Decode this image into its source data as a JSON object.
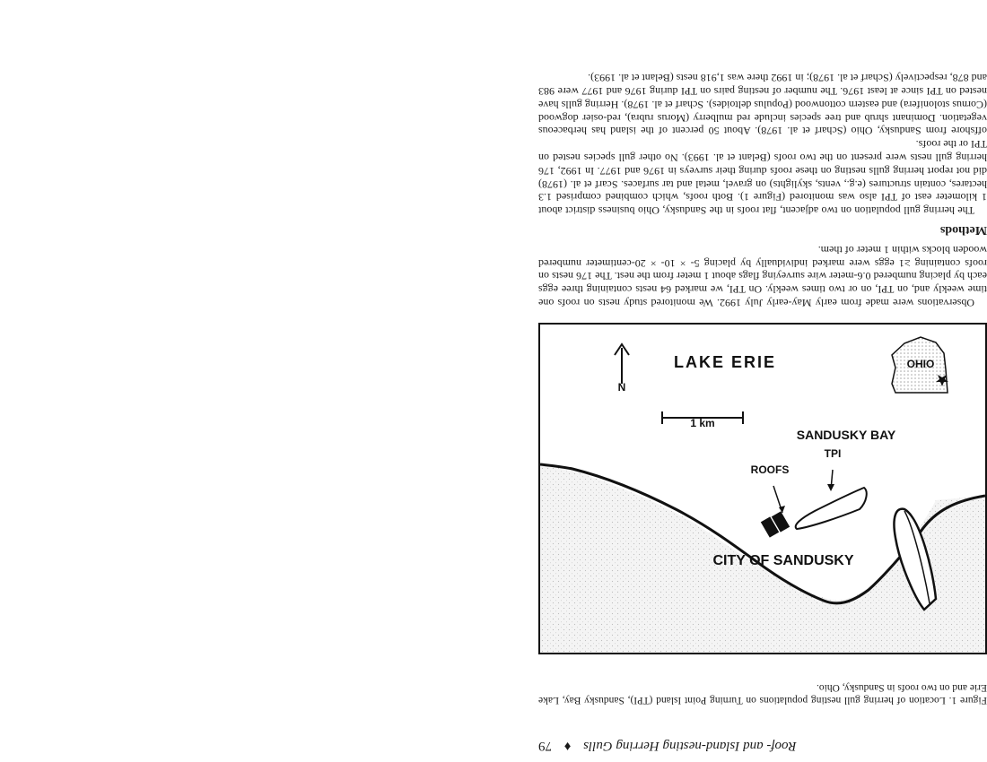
{
  "running_head": {
    "title": "Roof- and Island-nesting Herring Gulls",
    "separator": "♦",
    "page_number": "79"
  },
  "figure": {
    "caption": "Figure 1. Location of herring gull nesting populations on Turning Point Island (TPI), Sandusky Bay, Lake Erie and on two roofs in Sandusky, Ohio.",
    "labels": {
      "city": "CITY OF SANDUSKY",
      "roofs": "ROOFS",
      "tpi": "TPI",
      "bay": "SANDUSKY BAY",
      "scale": "1 km",
      "north": "N",
      "lake": "LAKE ERIE",
      "state": "OHIO"
    }
  },
  "body": {
    "methods_heading": "Methods",
    "methods_paragraph": "Observations were made from early May-early July 1992. We monitored study nests on roofs one time weekly and, on TPI, on or two times weekly. On TPI, we marked 64 nests containing three eggs each by placing numbered 0.6-meter wire surveying flags about 1 meter from the nest. The 176 nests on roofs containing ≥1 eggs were marked individually by placing 5- × 10- × 20-centimeter numbered wooden blocks within 1 meter of them.",
    "roofs_paragraph": "The herring gull population on two adjacent, flat roofs in the Sandusky, Ohio business district about 1 kilometer east of TPI also was monitored (Figure 1). Both roofs, which combined comprised 1.3 hectares, contain structures (e.g., vents, skylights) on gravel, metal and tar surfaces. Scarf et al. (1978) did not report herring gulls nesting on these roofs during their surveys in 1976 and 1977. In 1992, 176 herring gull nests were present on the two roofs (Belant et al. 1993). No other gull species nested on TPI or the roofs.",
    "intro_paragraph": "offshore from Sandusky, Ohio (Scharf et al. 1978). About 50 percent of the island has herbaceous vegetation. Dominant shrub and tree species include red mulberry (Morus rubra), red-osier dogwood (Cornus stolonifera) and eastern cottonwood (Populus deltoides). Scharf et al. 1978). Herring gulls have nested on TPI since at least 1976. The number of nesting pairs on TPI during 1976 and 1977 were 983 and 878, respectively (Scharf et al. 1978); in 1992 there was 1,918 nests (Belant et al. 1993)."
  }
}
